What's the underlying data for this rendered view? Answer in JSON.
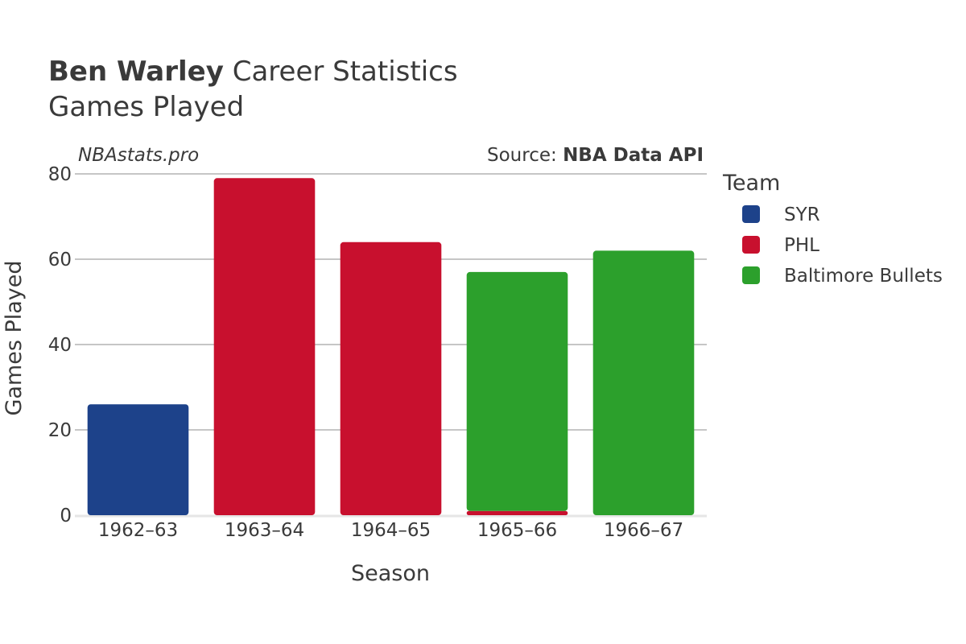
{
  "title": {
    "name": "Ben Warley",
    "rest": "Career Statistics",
    "subtitle": "Games Played"
  },
  "watermark": "NBAstats.pro",
  "source": {
    "prefix": "Source: ",
    "name": "NBA Data API"
  },
  "legend": {
    "title": "Team",
    "placement": "right",
    "items": [
      {
        "name": "SYR",
        "color": "#1d428a"
      },
      {
        "name": "PHL",
        "color": "#c8102e"
      },
      {
        "name": "Baltimore Bullets",
        "color": "#2ca02c"
      }
    ]
  },
  "chart_data": {
    "type": "bar",
    "stacked": true,
    "categories": [
      "1962–63",
      "1963–64",
      "1964–65",
      "1965–66",
      "1966–67"
    ],
    "series": [
      {
        "name": "SYR",
        "color": "#1d428a",
        "values": [
          26,
          0,
          0,
          0,
          0
        ]
      },
      {
        "name": "PHL",
        "color": "#c8102e",
        "values": [
          0,
          79,
          64,
          1,
          0
        ]
      },
      {
        "name": "Baltimore Bullets",
        "color": "#2ca02c",
        "values": [
          0,
          0,
          0,
          56,
          62
        ]
      }
    ],
    "xlabel": "Season",
    "ylabel": "Games Played",
    "ylim": [
      0,
      80
    ],
    "yticks": [
      0,
      20,
      40,
      60,
      80
    ],
    "grid": true
  }
}
